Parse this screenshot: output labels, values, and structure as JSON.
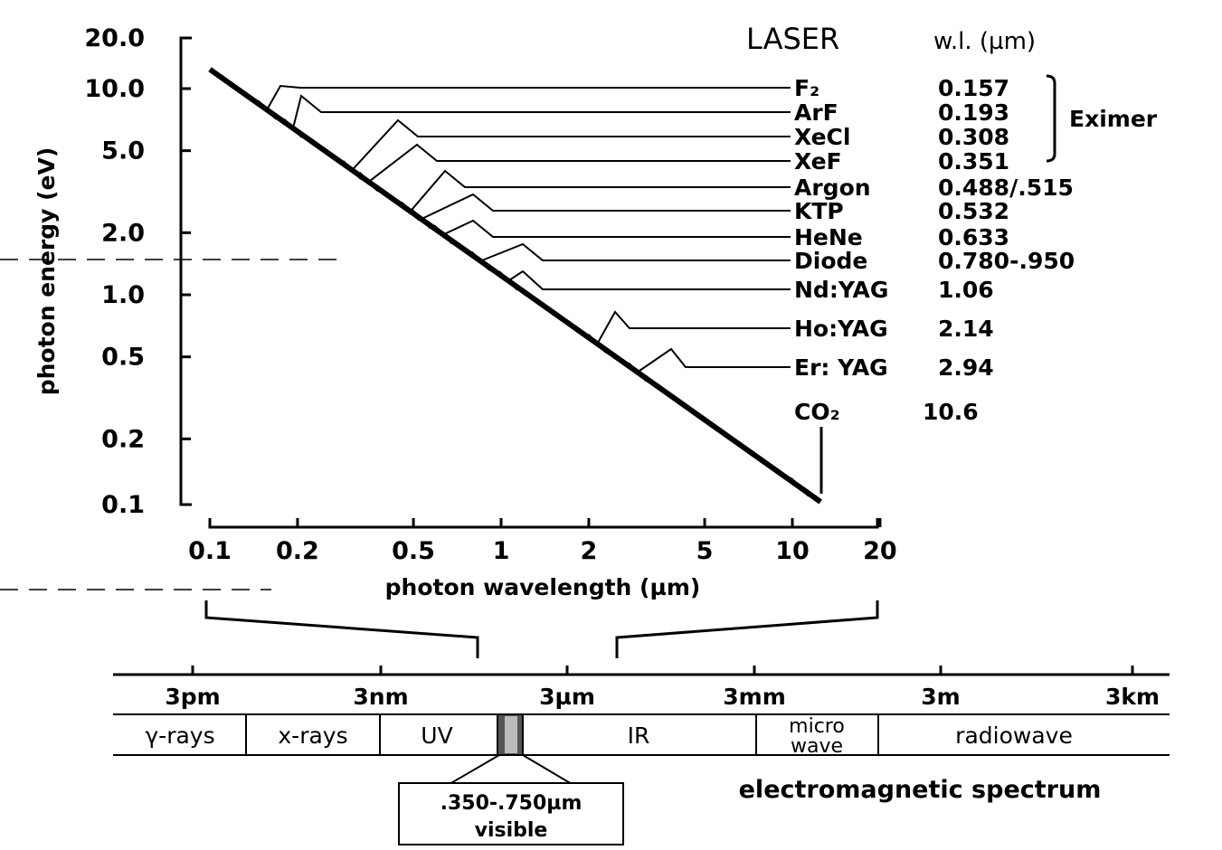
{
  "chart_data": {
    "type": "line",
    "x_axis": {
      "label": "photon wavelength (µm)",
      "scale": "log",
      "range": [
        0.1,
        20
      ],
      "ticks": [
        "0.1",
        "0.2",
        "0.5",
        "1",
        "2",
        "5",
        "10",
        "20"
      ]
    },
    "y_axis": {
      "label": "photon energy (eV)",
      "scale": "log",
      "range": [
        0.1,
        20
      ],
      "ticks": [
        "20.0",
        "10.0",
        "5.0",
        "2.0",
        "1.0",
        "0.5",
        "0.2",
        "0.1"
      ]
    },
    "series": [
      {
        "x": [
          0.1,
          12.5
        ],
        "y": [
          12.4,
          0.099
        ]
      }
    ],
    "table_header": {
      "laser": "LASER",
      "wavelength": "w.l. (µm)"
    },
    "lasers": [
      {
        "name": "F₂",
        "wl_label": "0.157",
        "wavelength": 0.157
      },
      {
        "name": "ArF",
        "wl_label": "0.193",
        "wavelength": 0.193
      },
      {
        "name": "XeCl",
        "wl_label": "0.308",
        "wavelength": 0.308
      },
      {
        "name": "XeF",
        "wl_label": "0.351",
        "wavelength": 0.351
      },
      {
        "name": "Argon",
        "wl_label": "0.488/.515",
        "wavelength": 0.488
      },
      {
        "name": "KTP",
        "wl_label": "0.532",
        "wavelength": 0.532
      },
      {
        "name": "HeNe",
        "wl_label": "0.633",
        "wavelength": 0.633
      },
      {
        "name": "Diode",
        "wl_label": "0.780-.950",
        "wavelength": 0.85
      },
      {
        "name": "Nd:YAG",
        "wl_label": "1.06",
        "wavelength": 1.06
      },
      {
        "name": "Ho:YAG",
        "wl_label": "2.14",
        "wavelength": 2.14
      },
      {
        "name": "Er: YAG",
        "wl_label": "2.94",
        "wavelength": 2.94
      },
      {
        "name": "CO₂",
        "wl_label": "10.6",
        "wavelength": 10.6
      }
    ],
    "eximer_group_label": "Eximer",
    "spectrum": {
      "scale_labels": [
        "3pm",
        "3nm",
        "3µm",
        "3mm",
        "3m",
        "3km"
      ],
      "bands": [
        "γ-rays",
        "x-rays",
        "UV",
        "IR",
        "micro",
        "wave",
        "radiowave"
      ],
      "visible_range": ".350-.750µm",
      "visible_label": "visible",
      "caption": "electromagnetic spectrum"
    }
  }
}
